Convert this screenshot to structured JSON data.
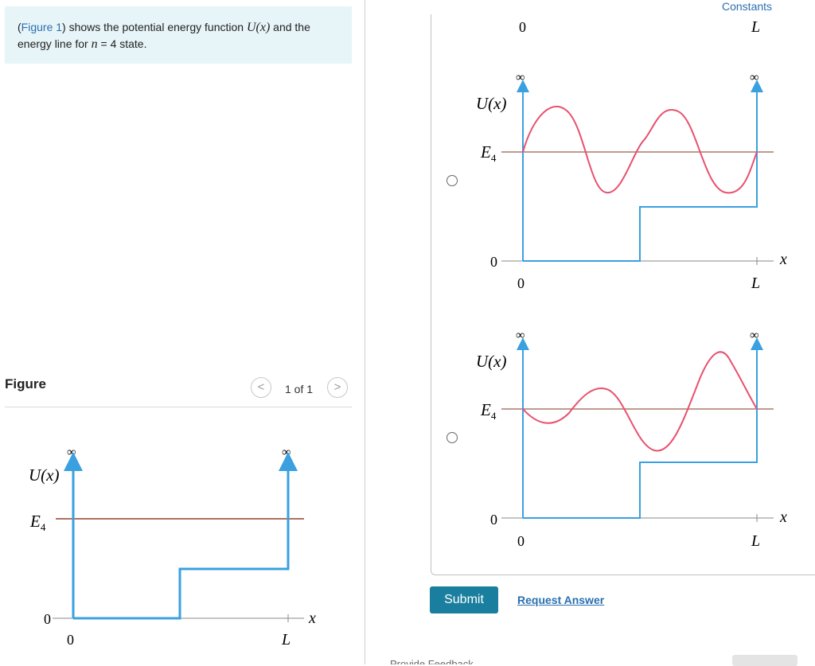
{
  "problem": {
    "figure_link": "Figure 1",
    "text_part1": ") shows the potential energy function ",
    "math_U": "U(x)",
    "text_part2": " and the energy line for ",
    "math_n": "n",
    "text_part3": " = 4 state."
  },
  "figure_panel": {
    "label": "Figure",
    "prev": "<",
    "next": ">",
    "pager": "1 of 1"
  },
  "constants": "Constants",
  "graph_labels": {
    "U": "U(x)",
    "E": "E",
    "E_sub": "4",
    "zero": "0",
    "L": "L",
    "x": "x",
    "inf": "∞"
  },
  "top_cut": {
    "zero": "0",
    "L": "L"
  },
  "actions": {
    "submit": "Submit",
    "request_answer": "Request Answer",
    "feedback": "Provide Feedback"
  },
  "colors": {
    "potential": "#3aa0e0",
    "energy_line": "#b07060",
    "wavefunction": "#e8506e",
    "submit_bg": "#1a7f9e",
    "link": "#2a6fb0",
    "info_bg": "#e7f4f8"
  }
}
